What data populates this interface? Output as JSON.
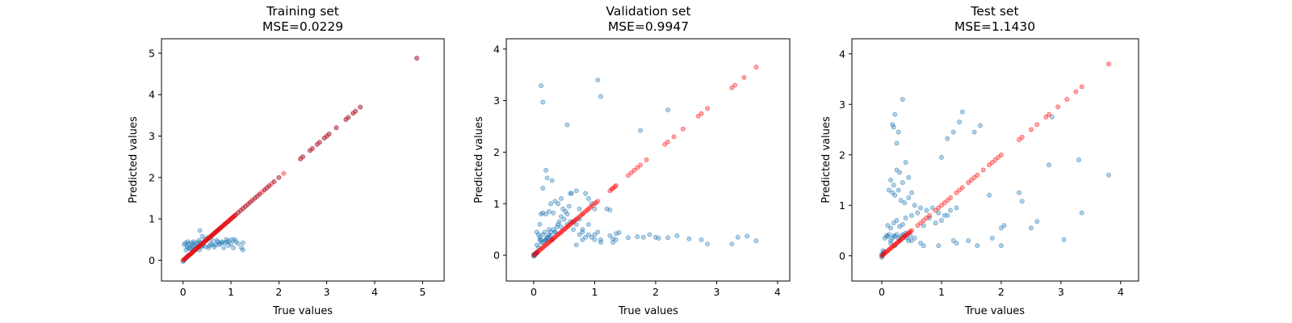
{
  "chart_data": [
    {
      "type": "scatter",
      "title": "Training set",
      "subtitle": "MSE=0.0229",
      "xlabel": "True values",
      "ylabel": "Predicted values",
      "xlim": [
        -0.45,
        5.45
      ],
      "ylim": [
        -0.5,
        5.35
      ],
      "xticks": [
        0,
        1,
        2,
        3,
        4,
        5
      ],
      "yticks": [
        0,
        1,
        2,
        3,
        4,
        5
      ],
      "grid": false,
      "colors": {
        "predicted": "#1f77b4",
        "ideal": "#ff0000"
      },
      "series": [
        {
          "role": "ideal",
          "x": [
            0.0,
            0.02,
            0.04,
            0.06,
            0.08,
            0.1,
            0.12,
            0.14,
            0.16,
            0.18,
            0.2,
            0.22,
            0.24,
            0.26,
            0.28,
            0.3,
            0.32,
            0.34,
            0.36,
            0.38,
            0.4,
            0.42,
            0.44,
            0.46,
            0.48,
            0.5,
            0.52,
            0.54,
            0.56,
            0.58,
            0.6,
            0.62,
            0.64,
            0.66,
            0.68,
            0.7,
            0.72,
            0.74,
            0.76,
            0.78,
            0.8,
            0.82,
            0.84,
            0.86,
            0.88,
            0.9,
            0.92,
            0.94,
            0.96,
            0.98,
            1.0,
            1.02,
            1.04,
            1.06,
            1.08,
            1.1,
            1.15,
            1.2,
            1.25,
            1.3,
            1.35,
            1.4,
            1.45,
            1.5,
            1.55,
            1.6,
            1.65,
            1.7,
            1.75,
            1.8,
            1.85,
            1.9,
            2.0,
            2.1,
            2.45,
            2.5,
            2.65,
            2.7,
            2.8,
            2.85,
            2.95,
            3.0,
            3.05,
            3.2,
            3.4,
            3.45,
            3.55,
            3.6,
            3.7,
            4.88
          ]
        },
        {
          "role": "predicted",
          "x": [
            0.0,
            0.02,
            0.03,
            0.05,
            0.08,
            0.1,
            0.12,
            0.15,
            0.18,
            0.2,
            0.22,
            0.25,
            0.28,
            0.3,
            0.33,
            0.35,
            0.38,
            0.4,
            0.43,
            0.45,
            0.48,
            0.5,
            0.53,
            0.55,
            0.58,
            0.6,
            0.63,
            0.65,
            0.68,
            0.7,
            0.73,
            0.75,
            0.78,
            0.8,
            0.85,
            0.9,
            0.95,
            1.0,
            1.05,
            1.1,
            1.15,
            1.2,
            1.25,
            1.3,
            1.35,
            1.4,
            1.45,
            1.5,
            1.55,
            1.6,
            1.7,
            1.75,
            1.8,
            1.9,
            2.0,
            2.45,
            2.5,
            2.65,
            2.7,
            2.8,
            2.85,
            2.95,
            3.0,
            3.05,
            3.2,
            3.4,
            3.45,
            3.55,
            3.6,
            3.7,
            4.88,
            0.02,
            0.05,
            0.08,
            0.1,
            0.12,
            0.15,
            0.18,
            0.2,
            0.22,
            0.25,
            0.28,
            0.3,
            0.33,
            0.35,
            0.06,
            0.1,
            0.14,
            0.2,
            0.24,
            0.3,
            0.34,
            0.38,
            0.42,
            0.47,
            0.53,
            0.58,
            0.62,
            0.68,
            0.72,
            0.78,
            0.82,
            0.88,
            0.92,
            0.96,
            1.02,
            1.08,
            1.15,
            1.22,
            1.25,
            0.35,
            0.4,
            0.45,
            0.5,
            0.6,
            0.7,
            0.8,
            0.9,
            1.0,
            1.1,
            1.25,
            0.55,
            0.65,
            0.75,
            0.85,
            0.95,
            1.05
          ],
          "y": [
            -0.03,
            0.0,
            0.02,
            0.04,
            0.07,
            0.1,
            0.12,
            0.14,
            0.17,
            0.2,
            0.22,
            0.25,
            0.28,
            0.3,
            0.33,
            0.35,
            0.38,
            0.4,
            0.43,
            0.45,
            0.48,
            0.5,
            0.53,
            0.55,
            0.58,
            0.6,
            0.63,
            0.65,
            0.68,
            0.7,
            0.73,
            0.75,
            0.78,
            0.8,
            0.85,
            0.9,
            0.95,
            1.0,
            1.05,
            1.1,
            1.15,
            1.2,
            1.25,
            1.3,
            1.35,
            1.4,
            1.45,
            1.5,
            1.55,
            1.6,
            1.7,
            1.75,
            1.8,
            1.9,
            2.0,
            2.45,
            2.5,
            2.65,
            2.7,
            2.8,
            2.85,
            2.95,
            3.0,
            3.05,
            3.2,
            3.4,
            3.45,
            3.55,
            3.6,
            3.7,
            4.88,
            0.38,
            0.42,
            0.35,
            0.45,
            0.4,
            0.3,
            0.42,
            0.38,
            0.45,
            0.35,
            0.42,
            0.4,
            0.48,
            0.44,
            0.25,
            0.3,
            0.28,
            0.33,
            0.27,
            0.3,
            0.25,
            0.32,
            0.35,
            0.33,
            0.3,
            0.4,
            0.38,
            0.37,
            0.45,
            0.4,
            0.43,
            0.42,
            0.45,
            0.47,
            0.5,
            0.5,
            0.4,
            0.3,
            0.25,
            0.72,
            0.58,
            0.5,
            0.55,
            0.5,
            0.48,
            0.45,
            0.5,
            0.4,
            0.45,
            0.42,
            0.35,
            0.32,
            0.38,
            0.3,
            0.36,
            0.3
          ]
        }
      ]
    },
    {
      "type": "scatter",
      "title": "Validation set",
      "subtitle": "MSE=0.9947",
      "xlabel": "True values",
      "ylabel": "Predicted values",
      "xlim": [
        -0.45,
        4.2
      ],
      "ylim": [
        -0.5,
        4.2
      ],
      "xticks": [
        0,
        1,
        2,
        3,
        4
      ],
      "yticks": [
        0,
        1,
        2,
        3,
        4
      ],
      "grid": false,
      "colors": {
        "predicted": "#1f77b4",
        "ideal": "#ff0000"
      },
      "series": [
        {
          "role": "ideal",
          "x": [
            0.0,
            0.02,
            0.04,
            0.06,
            0.08,
            0.1,
            0.12,
            0.14,
            0.16,
            0.18,
            0.2,
            0.22,
            0.24,
            0.26,
            0.28,
            0.3,
            0.32,
            0.34,
            0.36,
            0.38,
            0.4,
            0.42,
            0.44,
            0.46,
            0.48,
            0.5,
            0.52,
            0.54,
            0.56,
            0.58,
            0.6,
            0.62,
            0.64,
            0.66,
            0.68,
            0.7,
            0.72,
            0.75,
            0.78,
            0.8,
            0.82,
            0.85,
            0.88,
            0.9,
            0.93,
            0.96,
            1.0,
            1.02,
            1.05,
            1.25,
            1.28,
            1.3,
            1.33,
            1.35,
            1.55,
            1.6,
            1.65,
            1.7,
            1.75,
            1.85,
            2.15,
            2.2,
            2.3,
            2.45,
            2.7,
            2.75,
            2.85,
            3.25,
            3.3,
            3.45,
            3.65
          ]
        },
        {
          "role": "predicted",
          "x": [
            0.0,
            0.01,
            0.02,
            0.03,
            0.04,
            0.05,
            0.0,
            0.02,
            0.04,
            0.06,
            0.05,
            0.08,
            0.1,
            0.12,
            0.15,
            0.18,
            0.2,
            0.22,
            0.25,
            0.28,
            0.3,
            0.05,
            0.08,
            0.1,
            0.12,
            0.15,
            0.18,
            0.2,
            0.22,
            0.25,
            0.28,
            0.3,
            0.32,
            0.35,
            0.38,
            0.4,
            0.42,
            0.45,
            0.5,
            0.55,
            0.6,
            0.65,
            0.7,
            0.75,
            0.8,
            0.85,
            0.9,
            0.95,
            1.0,
            1.05,
            1.1,
            0.12,
            0.15,
            0.2,
            0.25,
            0.32,
            0.28,
            0.35,
            0.4,
            0.45,
            0.48,
            0.52,
            0.58,
            0.62,
            0.7,
            0.75,
            0.85,
            0.9,
            0.95,
            1.0,
            0.1,
            0.25,
            0.35,
            0.15,
            0.22,
            0.15,
            0.12,
            0.55,
            0.6,
            1.05,
            1.1,
            0.2,
            0.3,
            0.45,
            0.55,
            0.65,
            0.75,
            0.8,
            0.9,
            1.25,
            1.3,
            1.35,
            1.55,
            1.7,
            1.8,
            2.05,
            2.2,
            2.35,
            2.55,
            2.75,
            2.85,
            3.25,
            3.35,
            3.5,
            3.65,
            1.2,
            1.25,
            1.3,
            1.75,
            2.2,
            1.0,
            1.1,
            0.7,
            0.8,
            1.35,
            1.4,
            1.9,
            2.0
          ],
          "y": [
            -0.02,
            0.0,
            0.02,
            0.03,
            0.05,
            0.06,
            0.02,
            0.0,
            0.03,
            0.05,
            0.45,
            0.4,
            0.35,
            0.3,
            0.25,
            0.28,
            0.3,
            0.33,
            0.35,
            0.38,
            0.3,
            0.2,
            0.15,
            0.3,
            0.25,
            0.4,
            0.45,
            0.3,
            0.35,
            0.4,
            0.45,
            0.3,
            0.5,
            0.45,
            0.55,
            0.6,
            0.65,
            0.55,
            0.7,
            0.6,
            0.65,
            0.5,
            0.6,
            0.4,
            0.45,
            0.35,
            0.4,
            0.35,
            0.4,
            0.45,
            0.3,
            0.8,
            0.82,
            0.8,
            0.85,
            0.82,
            1.0,
            1.05,
            1.0,
            1.1,
            0.9,
            0.85,
            0.95,
            1.2,
            1.25,
            0.9,
            1.2,
            1.1,
            1.0,
            0.9,
            0.6,
            0.5,
            0.45,
            1.3,
            1.5,
            2.97,
            3.29,
            2.53,
            1.2,
            3.4,
            3.08,
            1.65,
            1.45,
            0.75,
            0.8,
            0.65,
            0.7,
            0.5,
            0.6,
            0.38,
            0.32,
            0.3,
            0.34,
            0.36,
            0.35,
            0.33,
            0.34,
            0.38,
            0.32,
            0.3,
            0.22,
            0.22,
            0.35,
            0.37,
            0.28,
            0.9,
            0.88,
            0.25,
            2.42,
            2.82,
            0.3,
            0.25,
            0.2,
            0.3,
            0.42,
            0.44,
            0.4,
            0.35
          ]
        }
      ]
    },
    {
      "type": "scatter",
      "title": "Test set",
      "subtitle": "MSE=1.1430",
      "xlabel": "True values",
      "ylabel": "Predicted values",
      "xlim": [
        -0.5,
        4.3
      ],
      "ylim": [
        -0.5,
        4.3
      ],
      "xticks": [
        0,
        1,
        2,
        3,
        4
      ],
      "yticks": [
        0,
        1,
        2,
        3,
        4
      ],
      "grid": false,
      "colors": {
        "predicted": "#1f77b4",
        "ideal": "#ff0000"
      },
      "series": [
        {
          "role": "ideal",
          "x": [
            0.0,
            0.02,
            0.04,
            0.06,
            0.08,
            0.1,
            0.12,
            0.14,
            0.16,
            0.18,
            0.2,
            0.22,
            0.24,
            0.26,
            0.28,
            0.3,
            0.32,
            0.34,
            0.36,
            0.38,
            0.4,
            0.42,
            0.44,
            0.46,
            0.48,
            0.5,
            0.6,
            0.65,
            0.7,
            0.75,
            0.8,
            0.9,
            0.95,
            1.0,
            1.05,
            1.1,
            1.15,
            1.25,
            1.3,
            1.35,
            1.45,
            1.5,
            1.55,
            1.6,
            1.7,
            1.8,
            1.85,
            1.9,
            1.95,
            2.0,
            2.3,
            2.35,
            2.5,
            2.6,
            2.75,
            2.8,
            2.95,
            3.1,
            3.25,
            3.35,
            3.8
          ]
        },
        {
          "role": "predicted",
          "x": [
            0.0,
            0.01,
            0.02,
            0.03,
            0.04,
            0.0,
            0.02,
            0.05,
            0.08,
            0.1,
            0.12,
            0.15,
            0.18,
            0.2,
            0.22,
            0.25,
            0.28,
            0.3,
            0.32,
            0.35,
            0.38,
            0.4,
            0.42,
            0.45,
            0.48,
            0.1,
            0.15,
            0.2,
            0.25,
            0.3,
            0.35,
            0.4,
            0.5,
            0.6,
            0.7,
            0.8,
            0.9,
            1.0,
            1.1,
            0.12,
            0.18,
            0.22,
            0.28,
            0.32,
            0.38,
            0.45,
            0.55,
            0.65,
            0.75,
            0.85,
            0.95,
            1.05,
            1.15,
            1.25,
            0.15,
            0.2,
            0.25,
            0.3,
            0.35,
            0.4,
            0.45,
            0.5,
            0.2,
            0.22,
            0.25,
            0.18,
            0.28,
            0.35,
            0.15,
            0.22,
            0.55,
            0.65,
            0.5,
            0.7,
            0.95,
            1.2,
            1.25,
            1.45,
            1.6,
            1.85,
            2.0,
            2.5,
            2.8,
            3.3,
            1.35,
            1.3,
            1.55,
            1.65,
            1.8,
            2.0,
            2.05,
            2.3,
            2.35,
            2.6,
            2.85,
            3.05,
            3.35,
            3.8,
            1.0,
            1.1,
            1.2
          ],
          "y": [
            -0.03,
            0.0,
            0.02,
            0.05,
            0.08,
            0.03,
            0.1,
            0.35,
            0.4,
            0.38,
            0.42,
            0.3,
            0.35,
            0.4,
            0.38,
            0.42,
            0.35,
            0.3,
            0.38,
            0.42,
            0.4,
            0.45,
            0.35,
            0.3,
            0.4,
            0.6,
            0.55,
            0.65,
            0.7,
            0.58,
            0.62,
            0.75,
            0.8,
            0.85,
            0.6,
            0.75,
            0.65,
            0.7,
            0.8,
            1.3,
            1.25,
            1.2,
            1.3,
            1.1,
            1.05,
            1.15,
            1.0,
            0.95,
            0.9,
            0.95,
            0.85,
            0.8,
            0.9,
            0.95,
            1.5,
            1.4,
            1.7,
            1.65,
            1.45,
            1.85,
            1.55,
            1.25,
            2.55,
            2.8,
            2.23,
            2.6,
            2.45,
            3.1,
            0.25,
            0.2,
            0.35,
            0.25,
            0.3,
            0.2,
            0.2,
            0.3,
            0.25,
            0.3,
            0.2,
            0.35,
            0.2,
            0.55,
            1.8,
            1.9,
            2.85,
            2.65,
            2.45,
            2.58,
            1.2,
            0.55,
            0.6,
            1.25,
            1.08,
            0.68,
            2.75,
            0.32,
            0.85,
            1.6,
            1.95,
            2.32,
            2.45
          ]
        }
      ]
    }
  ]
}
